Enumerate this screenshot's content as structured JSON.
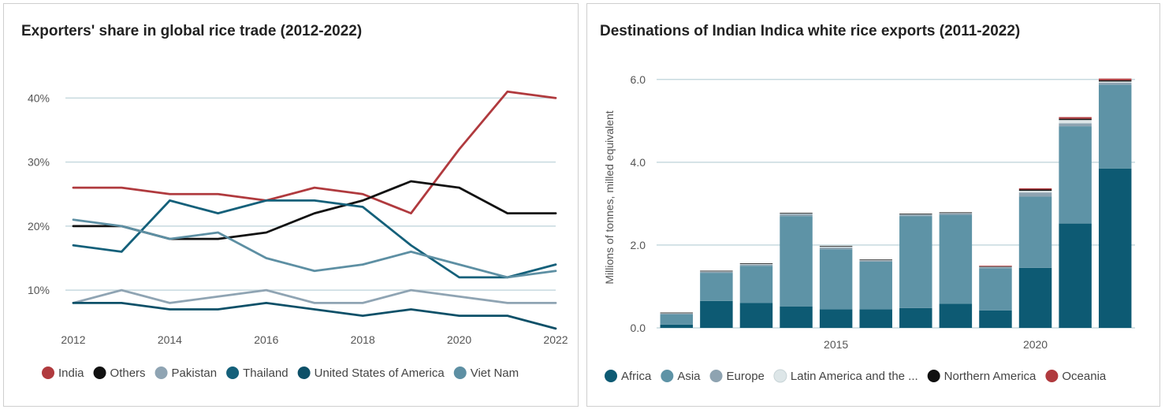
{
  "charts": [
    {
      "type": "line",
      "title": "Exporters' share in global rice trade (2012-2022)",
      "x": [
        2012,
        2013,
        2014,
        2015,
        2016,
        2017,
        2018,
        2019,
        2020,
        2021,
        2022
      ],
      "x_tick_labels": [
        "2012",
        "2014",
        "2016",
        "2018",
        "2020",
        "2022"
      ],
      "y_ticks": [
        10,
        20,
        30,
        40
      ],
      "y_tick_labels": [
        "10%",
        "20%",
        "30%",
        "40%"
      ],
      "ylim": [
        3,
        43
      ],
      "grid": "horizontal",
      "legend_position": "bottom",
      "series": [
        {
          "name": "India",
          "color": "#b03a3e",
          "values": [
            26,
            26,
            25,
            25,
            24,
            26,
            25,
            22,
            32,
            41,
            40
          ]
        },
        {
          "name": "Others",
          "color": "#111111",
          "values": [
            20,
            20,
            18,
            18,
            19,
            22,
            24,
            27,
            26,
            22,
            22
          ]
        },
        {
          "name": "Pakistan",
          "color": "#8fa4b3",
          "values": [
            8,
            10,
            8,
            9,
            10,
            8,
            8,
            10,
            9,
            8,
            8
          ]
        },
        {
          "name": "Thailand",
          "color": "#14607a",
          "values": [
            17,
            16,
            24,
            22,
            24,
            24,
            23,
            17,
            12,
            12,
            14
          ]
        },
        {
          "name": "United States of America",
          "color": "#0d5068",
          "values": [
            8,
            8,
            7,
            7,
            8,
            7,
            6,
            7,
            6,
            6,
            4
          ]
        },
        {
          "name": "Viet Nam",
          "color": "#5d8fa3",
          "values": [
            21,
            20,
            18,
            19,
            15,
            13,
            14,
            16,
            14,
            12,
            13
          ]
        }
      ]
    },
    {
      "type": "bar",
      "stacked": true,
      "title": "Destinations of Indian Indica white rice exports (2011-2022)",
      "ylabel": "Millions of tonnes, milled equivalent",
      "x": [
        2011,
        2012,
        2013,
        2014,
        2015,
        2016,
        2017,
        2018,
        2019,
        2020,
        2021,
        2022
      ],
      "x_tick_labels": [
        {
          "value": 2015,
          "label": "2015"
        },
        {
          "value": 2020,
          "label": "2020"
        }
      ],
      "y_ticks": [
        0,
        2,
        4,
        6
      ],
      "y_tick_labels": [
        "0.0",
        "2.0",
        "4.0",
        "6.0"
      ],
      "ylim": [
        0,
        6.3
      ],
      "grid": "horizontal",
      "legend_position": "bottom",
      "series": [
        {
          "name": "Africa",
          "color": "#0d5a73",
          "values": [
            0.08,
            0.65,
            0.6,
            0.52,
            0.45,
            0.45,
            0.48,
            0.58,
            0.42,
            1.45,
            2.52,
            3.85
          ]
        },
        {
          "name": "Asia",
          "color": "#5e93a6",
          "values": [
            0.25,
            0.68,
            0.9,
            2.18,
            1.45,
            1.15,
            2.22,
            2.15,
            1.02,
            1.72,
            2.35,
            2.02
          ]
        },
        {
          "name": "Europe",
          "color": "#8ea3b1",
          "values": [
            0.02,
            0.03,
            0.03,
            0.05,
            0.04,
            0.03,
            0.04,
            0.04,
            0.03,
            0.1,
            0.07,
            0.05
          ]
        },
        {
          "name": "Latin America and the ...",
          "color": "#dde6e8",
          "values": [
            0.01,
            0.01,
            0.02,
            0.02,
            0.03,
            0.01,
            0.01,
            0.01,
            0.01,
            0.04,
            0.08,
            0.03
          ]
        },
        {
          "name": "Northern America",
          "color": "#111111",
          "values": [
            0.01,
            0.01,
            0.01,
            0.01,
            0.01,
            0.01,
            0.01,
            0.01,
            0.01,
            0.03,
            0.03,
            0.03
          ]
        },
        {
          "name": "Oceania",
          "color": "#b03a3e",
          "values": [
            0.0,
            0.0,
            0.0,
            0.0,
            0.0,
            0.0,
            0.0,
            0.0,
            0.01,
            0.03,
            0.04,
            0.04
          ]
        }
      ]
    }
  ]
}
